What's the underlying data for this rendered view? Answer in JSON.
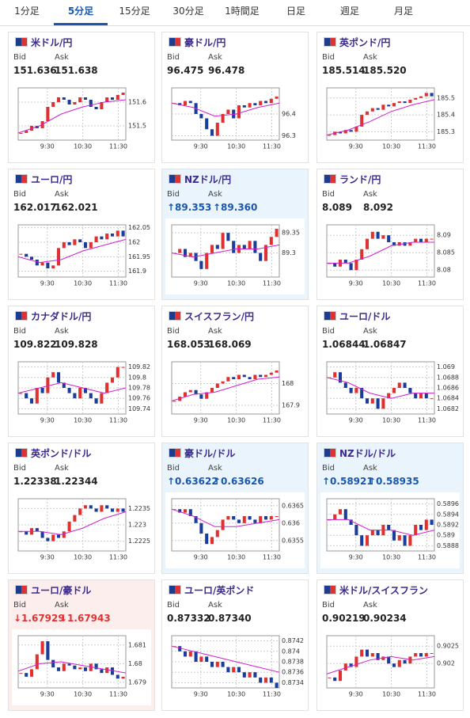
{
  "tabs": [
    "1分足",
    "5分足",
    "15分足",
    "30分足",
    "1時間足",
    "日足",
    "週足",
    "月足"
  ],
  "selected_tab": 1,
  "labels": {
    "bid": "Bid",
    "ask": "Ask"
  },
  "cards": [
    {
      "title": "米ドル/円",
      "bid": "151.636",
      "ask": "151.638",
      "ylim": [
        151.44,
        151.66
      ],
      "yticks": [
        151.5,
        151.6
      ],
      "xticks": [
        "9:30",
        "10:30",
        "11:30"
      ],
      "values": [
        151.47,
        151.48,
        151.5,
        151.49,
        151.52,
        151.58,
        151.6,
        151.62,
        151.61,
        151.59,
        151.6,
        151.62,
        151.61,
        151.58,
        151.57,
        151.6,
        151.62,
        151.61,
        151.63,
        151.64
      ],
      "ma": [
        151.47,
        151.5,
        151.55,
        151.58,
        151.6,
        151.61
      ]
    },
    {
      "title": "豪ドル/円",
      "bid": "96.475",
      "ask": "96.478",
      "ylim": [
        96.28,
        96.52
      ],
      "yticks": [
        96.3,
        96.4
      ],
      "xticks": [
        "9:30",
        "10:30",
        "11:30"
      ],
      "values": [
        96.45,
        96.44,
        96.46,
        96.45,
        96.4,
        96.38,
        96.33,
        96.3,
        96.36,
        96.4,
        96.42,
        96.38,
        96.44,
        96.43,
        96.45,
        96.44,
        96.46,
        96.45,
        96.47,
        96.48
      ],
      "ma": [
        96.45,
        96.43,
        96.39,
        96.4,
        96.43,
        96.45
      ]
    },
    {
      "title": "英ポンド/円",
      "bid": "185.514",
      "ask": "185.520",
      "ylim": [
        185.25,
        185.56
      ],
      "yticks": [
        185.3,
        185.4,
        185.5
      ],
      "xticks": [
        "9:30",
        "10:30",
        "11:30"
      ],
      "values": [
        185.28,
        185.3,
        185.29,
        185.31,
        185.3,
        185.33,
        185.4,
        185.42,
        185.44,
        185.43,
        185.46,
        185.45,
        185.47,
        185.48,
        185.47,
        185.49,
        185.5,
        185.51,
        185.53,
        185.51
      ],
      "ma": [
        185.28,
        185.31,
        185.36,
        185.42,
        185.46,
        185.49
      ]
    },
    {
      "title": "ユーロ/円",
      "bid": "162.017",
      "ask": "162.021",
      "ylim": [
        161.88,
        162.06
      ],
      "yticks": [
        161.9,
        161.95,
        162,
        162.05
      ],
      "xticks": [
        "9:30",
        "10:30",
        "11:30"
      ],
      "values": [
        161.96,
        161.95,
        161.94,
        161.92,
        161.93,
        161.91,
        161.92,
        161.98,
        162.0,
        161.99,
        162.01,
        162.0,
        161.98,
        162.0,
        162.02,
        162.01,
        162.03,
        162.02,
        162.04,
        162.02
      ],
      "ma": [
        161.95,
        161.93,
        161.94,
        161.97,
        161.99,
        162.01
      ]
    },
    {
      "title": "NZドル/円",
      "bid": "↑89.353",
      "ask": "↑89.360",
      "highlight": "up",
      "ylim": [
        89.24,
        89.37
      ],
      "yticks": [
        89.3,
        89.35
      ],
      "xticks": [
        "9:30",
        "10:30",
        "11:30"
      ],
      "values": [
        89.3,
        89.31,
        89.29,
        89.3,
        89.28,
        89.26,
        89.3,
        89.32,
        89.31,
        89.35,
        89.33,
        89.3,
        89.32,
        89.31,
        89.33,
        89.3,
        89.28,
        89.32,
        89.34,
        89.36
      ],
      "ma": [
        89.3,
        89.29,
        89.3,
        89.31,
        89.31,
        89.32
      ]
    },
    {
      "title": "ランド/円",
      "bid": "8.089",
      "ask": "8.092",
      "ylim": [
        8.078,
        8.093
      ],
      "yticks": [
        8.08,
        8.085,
        8.09
      ],
      "xticks": [
        "9:30",
        "10:30",
        "11:30"
      ],
      "values": [
        8.082,
        8.081,
        8.083,
        8.082,
        8.08,
        8.083,
        8.086,
        8.089,
        8.091,
        8.089,
        8.09,
        8.088,
        8.087,
        8.088,
        8.087,
        8.088,
        8.089,
        8.088,
        8.089,
        8.089
      ],
      "ma": [
        8.082,
        8.082,
        8.084,
        8.087,
        8.088,
        8.088
      ]
    },
    {
      "title": "カナダドル/円",
      "bid": "109.822",
      "ask": "109.828",
      "ylim": [
        109.73,
        109.83
      ],
      "yticks": [
        109.74,
        109.76,
        109.78,
        109.8,
        109.82
      ],
      "xticks": [
        "9:30",
        "10:30",
        "11:30"
      ],
      "values": [
        109.77,
        109.76,
        109.75,
        109.78,
        109.77,
        109.8,
        109.81,
        109.79,
        109.78,
        109.77,
        109.76,
        109.78,
        109.77,
        109.76,
        109.75,
        109.77,
        109.79,
        109.8,
        109.82,
        109.82
      ],
      "ma": [
        109.77,
        109.78,
        109.79,
        109.78,
        109.77,
        109.78
      ]
    },
    {
      "title": "スイスフラン/円",
      "bid": "168.053",
      "ask": "168.069",
      "ylim": [
        167.86,
        168.1
      ],
      "yticks": [
        167.9,
        168
      ],
      "xticks": [
        "9:30",
        "10:30",
        "11:30"
      ],
      "values": [
        167.92,
        167.94,
        167.96,
        167.97,
        167.95,
        167.93,
        167.96,
        167.98,
        168.0,
        168.01,
        168.03,
        168.02,
        168.04,
        168.03,
        168.02,
        168.04,
        168.03,
        168.04,
        168.05,
        168.06
      ],
      "ma": [
        167.92,
        167.95,
        167.96,
        167.99,
        168.02,
        168.03
      ]
    },
    {
      "title": "ユーロ/ドル",
      "bid": "1.06844",
      "ask": "1.06847",
      "ylim": [
        1.0681,
        1.0691
      ],
      "yticks": [
        1.0682,
        1.0684,
        1.0686,
        1.0688,
        1.069
      ],
      "xticks": [
        "9:30",
        "10:30",
        "11:30"
      ],
      "values": [
        1.0688,
        1.0689,
        1.0687,
        1.0686,
        1.0685,
        1.0686,
        1.0684,
        1.0683,
        1.0684,
        1.0682,
        1.0684,
        1.0685,
        1.0686,
        1.0687,
        1.0686,
        1.0685,
        1.0684,
        1.0685,
        1.0684,
        1.0684
      ],
      "ma": [
        1.0688,
        1.0687,
        1.0685,
        1.0684,
        1.0685,
        1.0685
      ]
    },
    {
      "title": "英ポンド/ドル",
      "bid": "1.22338",
      "ask": "1.22344",
      "ylim": [
        1.2222,
        1.2238
      ],
      "yticks": [
        1.2225,
        1.223,
        1.2235
      ],
      "xticks": [
        "9:30",
        "10:30",
        "11:30"
      ],
      "values": [
        1.2228,
        1.2227,
        1.2229,
        1.2228,
        1.2226,
        1.2225,
        1.2227,
        1.2226,
        1.2228,
        1.2231,
        1.2233,
        1.2235,
        1.2236,
        1.2235,
        1.2234,
        1.2236,
        1.2235,
        1.2234,
        1.2235,
        1.2234
      ],
      "ma": [
        1.2228,
        1.2228,
        1.2227,
        1.2229,
        1.2232,
        1.2234
      ]
    },
    {
      "title": "豪ドル/ドル",
      "bid": "↑0.63622",
      "ask": "↑0.63626",
      "highlight": "up",
      "ylim": [
        0.6352,
        0.6367
      ],
      "yticks": [
        0.6355,
        0.636,
        0.6365
      ],
      "xticks": [
        "9:30",
        "10:30",
        "11:30"
      ],
      "values": [
        0.6364,
        0.6363,
        0.6364,
        0.6362,
        0.636,
        0.6357,
        0.6354,
        0.6356,
        0.6358,
        0.6361,
        0.6362,
        0.6361,
        0.636,
        0.6362,
        0.6361,
        0.636,
        0.6362,
        0.6361,
        0.6362,
        0.6362
      ],
      "ma": [
        0.6364,
        0.6362,
        0.6359,
        0.6359,
        0.636,
        0.6361
      ]
    },
    {
      "title": "NZドル/ドル",
      "bid": "↑0.58921",
      "ask": "↑0.58935",
      "highlight": "up",
      "ylim": [
        0.5887,
        0.5897
      ],
      "yticks": [
        0.5888,
        0.589,
        0.5892,
        0.5894,
        0.5896
      ],
      "xticks": [
        "9:30",
        "10:30",
        "11:30"
      ],
      "values": [
        0.5893,
        0.5894,
        0.5895,
        0.5893,
        0.5892,
        0.589,
        0.5888,
        0.589,
        0.5891,
        0.589,
        0.5892,
        0.5891,
        0.5889,
        0.589,
        0.5888,
        0.589,
        0.5892,
        0.5891,
        0.5893,
        0.5892
      ],
      "ma": [
        0.5893,
        0.5893,
        0.5891,
        0.5891,
        0.589,
        0.5891
      ]
    },
    {
      "title": "ユーロ/豪ドル",
      "bid": "↓1.67929",
      "ask": "↓1.67943",
      "highlight": "down",
      "ylim": [
        1.6787,
        1.6815
      ],
      "yticks": [
        1.679,
        1.68,
        1.681
      ],
      "xticks": [
        "9:30",
        "10:30",
        "11:30"
      ],
      "values": [
        1.6795,
        1.6793,
        1.6797,
        1.6805,
        1.6812,
        1.6802,
        1.6798,
        1.6796,
        1.68,
        1.6799,
        1.6797,
        1.6798,
        1.6796,
        1.68,
        1.6797,
        1.6795,
        1.6798,
        1.6794,
        1.6792,
        1.6793
      ],
      "ma": [
        1.6796,
        1.68,
        1.6801,
        1.6799,
        1.6797,
        1.6795
      ]
    },
    {
      "title": "ユーロ/英ポンド",
      "bid": "0.87332",
      "ask": "0.87340",
      "ylim": [
        0.8733,
        0.8743
      ],
      "yticks": [
        0.8734,
        0.8736,
        0.8738,
        0.874,
        0.8742
      ],
      "xticks": [
        "9:30",
        "10:30",
        "11:30"
      ],
      "values": [
        0.8741,
        0.874,
        0.8739,
        0.874,
        0.8738,
        0.8739,
        0.8738,
        0.8737,
        0.8738,
        0.8737,
        0.8736,
        0.8737,
        0.8736,
        0.8735,
        0.8736,
        0.8735,
        0.8734,
        0.8735,
        0.8734,
        0.8733
      ],
      "ma": [
        0.8741,
        0.874,
        0.8739,
        0.8738,
        0.8737,
        0.8736
      ]
    },
    {
      "title": "米ドル/スイスフラン",
      "bid": "0.90219",
      "ask": "0.90234",
      "ylim": [
        0.9013,
        0.9028
      ],
      "yticks": [
        0.902,
        0.9025
      ],
      "xticks": [
        "9:30",
        "10:30",
        "11:30"
      ],
      "values": [
        0.9016,
        0.9015,
        0.9018,
        0.902,
        0.9019,
        0.9022,
        0.9024,
        0.9022,
        0.9023,
        0.9021,
        0.9022,
        0.902,
        0.9019,
        0.9021,
        0.902,
        0.9022,
        0.9023,
        0.9022,
        0.9023,
        0.9023
      ],
      "ma": [
        0.9017,
        0.9019,
        0.9021,
        0.9022,
        0.9021,
        0.9022
      ]
    }
  ]
}
